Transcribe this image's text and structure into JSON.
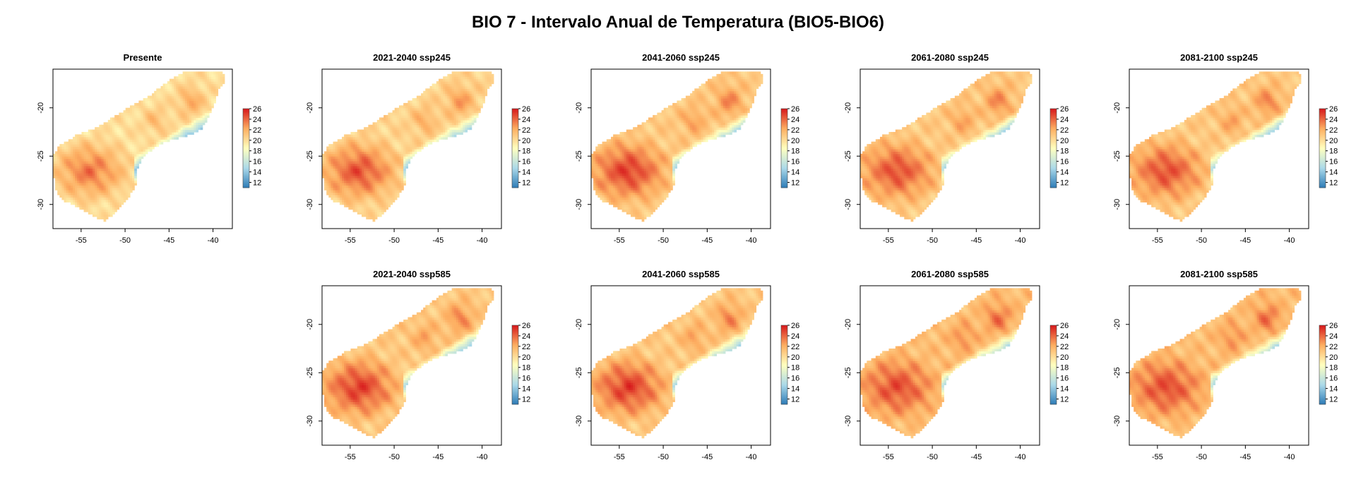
{
  "figure": {
    "title": "BIO 7 - Intervalo Anual de Temperatura (BIO5-BIO6)"
  },
  "colors": {
    "scale": [
      "#2c7bb6",
      "#abd9e9",
      "#ffffbf",
      "#fdae61",
      "#d7191c"
    ],
    "frame": "#000000",
    "background": "#ffffff"
  },
  "chart_data": [
    {
      "type": "heatmap",
      "title": "Presente",
      "xlim": [
        -58.2,
        -37.8
      ],
      "ylim": [
        -32.5,
        -16.0
      ],
      "x_ticks": [
        -55,
        -50,
        -45,
        -40
      ],
      "x_tick_labels": [
        "-55",
        "-50",
        "-45",
        "-40"
      ],
      "y_ticks": [
        -20,
        -25,
        -30
      ],
      "y_tick_labels": [
        "-20",
        "-25",
        "-30"
      ],
      "legend_ticks": [
        12,
        14,
        16,
        18,
        20,
        22,
        24,
        26
      ],
      "legend_range": [
        11,
        26
      ],
      "region_summary": {
        "southwest_core_max": 24,
        "interior_mean": 20,
        "coastal_min": 13
      }
    },
    {
      "type": "heatmap",
      "title": "2021-2040 ssp245",
      "xlim": [
        -58.2,
        -37.8
      ],
      "ylim": [
        -32.5,
        -16.0
      ],
      "x_ticks": [
        -55,
        -50,
        -45,
        -40
      ],
      "x_tick_labels": [
        "-55",
        "-50",
        "-45",
        "-40"
      ],
      "y_ticks": [
        -20,
        -25,
        -30
      ],
      "y_tick_labels": [
        "-20",
        "-25",
        "-30"
      ],
      "legend_ticks": [
        12,
        14,
        16,
        18,
        20,
        22,
        24,
        26
      ],
      "legend_range": [
        11,
        26
      ],
      "region_summary": {
        "southwest_core_max": 25,
        "interior_mean": 20.5,
        "coastal_min": 13.5
      }
    },
    {
      "type": "heatmap",
      "title": "2041-2060 ssp245",
      "xlim": [
        -58.2,
        -37.8
      ],
      "ylim": [
        -32.5,
        -16.0
      ],
      "x_ticks": [
        -55,
        -50,
        -45,
        -40
      ],
      "x_tick_labels": [
        "-55",
        "-50",
        "-45",
        "-40"
      ],
      "y_ticks": [
        -20,
        -25,
        -30
      ],
      "y_tick_labels": [
        "-20",
        "-25",
        "-30"
      ],
      "legend_ticks": [
        12,
        14,
        16,
        18,
        20,
        22,
        24,
        26
      ],
      "legend_range": [
        11,
        26
      ],
      "region_summary": {
        "southwest_core_max": 25.5,
        "interior_mean": 21,
        "coastal_min": 14
      }
    },
    {
      "type": "heatmap",
      "title": "2061-2080 ssp245",
      "xlim": [
        -58.2,
        -37.8
      ],
      "ylim": [
        -32.5,
        -16.0
      ],
      "x_ticks": [
        -55,
        -50,
        -45,
        -40
      ],
      "x_tick_labels": [
        "-55",
        "-50",
        "-45",
        "-40"
      ],
      "y_ticks": [
        -20,
        -25,
        -30
      ],
      "y_tick_labels": [
        "-20",
        "-25",
        "-30"
      ],
      "legend_ticks": [
        12,
        14,
        16,
        18,
        20,
        22,
        24,
        26
      ],
      "legend_range": [
        11,
        26
      ],
      "region_summary": {
        "southwest_core_max": 25,
        "interior_mean": 21,
        "coastal_min": 14
      }
    },
    {
      "type": "heatmap",
      "title": "2081-2100 ssp245",
      "xlim": [
        -58.2,
        -37.8
      ],
      "ylim": [
        -32.5,
        -16.0
      ],
      "x_ticks": [
        -55,
        -50,
        -45,
        -40
      ],
      "x_tick_labels": [
        "-55",
        "-50",
        "-45",
        "-40"
      ],
      "y_ticks": [
        -20,
        -25,
        -30
      ],
      "y_tick_labels": [
        "-20",
        "-25",
        "-30"
      ],
      "legend_ticks": [
        12,
        14,
        16,
        18,
        20,
        22,
        24,
        26
      ],
      "legend_range": [
        11,
        26
      ],
      "region_summary": {
        "southwest_core_max": 25,
        "interior_mean": 21,
        "coastal_min": 14
      }
    },
    {
      "type": "heatmap",
      "title": "2021-2040 ssp585",
      "xlim": [
        -58.2,
        -37.8
      ],
      "ylim": [
        -32.5,
        -16.0
      ],
      "x_ticks": [
        -55,
        -50,
        -45,
        -40
      ],
      "x_tick_labels": [
        "-55",
        "-50",
        "-45",
        "-40"
      ],
      "y_ticks": [
        -20,
        -25,
        -30
      ],
      "y_tick_labels": [
        "-20",
        "-25",
        "-30"
      ],
      "legend_ticks": [
        12,
        14,
        16,
        18,
        20,
        22,
        24,
        26
      ],
      "legend_range": [
        11,
        26
      ],
      "region_summary": {
        "southwest_core_max": 25.5,
        "interior_mean": 21,
        "coastal_min": 14
      }
    },
    {
      "type": "heatmap",
      "title": "2041-2060 ssp585",
      "xlim": [
        -58.2,
        -37.8
      ],
      "ylim": [
        -32.5,
        -16.0
      ],
      "x_ticks": [
        -55,
        -50,
        -45,
        -40
      ],
      "x_tick_labels": [
        "-55",
        "-50",
        "-45",
        "-40"
      ],
      "y_ticks": [
        -20,
        -25,
        -30
      ],
      "y_tick_labels": [
        "-20",
        "-25",
        "-30"
      ],
      "legend_ticks": [
        12,
        14,
        16,
        18,
        20,
        22,
        24,
        26
      ],
      "legend_range": [
        11,
        26
      ],
      "region_summary": {
        "southwest_core_max": 25.5,
        "interior_mean": 21,
        "coastal_min": 14
      }
    },
    {
      "type": "heatmap",
      "title": "2061-2080 ssp585",
      "xlim": [
        -58.2,
        -37.8
      ],
      "ylim": [
        -32.5,
        -16.0
      ],
      "x_ticks": [
        -55,
        -50,
        -45,
        -40
      ],
      "x_tick_labels": [
        "-55",
        "-50",
        "-45",
        "-40"
      ],
      "y_ticks": [
        -20,
        -25,
        -30
      ],
      "y_tick_labels": [
        "-20",
        "-25",
        "-30"
      ],
      "legend_ticks": [
        12,
        14,
        16,
        18,
        20,
        22,
        24,
        26
      ],
      "legend_range": [
        11,
        26
      ],
      "region_summary": {
        "southwest_core_max": 25,
        "interior_mean": 21.5,
        "coastal_min": 14.5
      }
    },
    {
      "type": "heatmap",
      "title": "2081-2100 ssp585",
      "xlim": [
        -58.2,
        -37.8
      ],
      "ylim": [
        -32.5,
        -16.0
      ],
      "x_ticks": [
        -55,
        -50,
        -45,
        -40
      ],
      "x_tick_labels": [
        "-55",
        "-50",
        "-45",
        "-40"
      ],
      "y_ticks": [
        -20,
        -25,
        -30
      ],
      "y_tick_labels": [
        "-20",
        "-25",
        "-30"
      ],
      "legend_ticks": [
        12,
        14,
        16,
        18,
        20,
        22,
        24,
        26
      ],
      "legend_range": [
        11,
        26
      ],
      "region_summary": {
        "southwest_core_max": 25,
        "interior_mean": 21.5,
        "coastal_min": 14.5
      }
    }
  ]
}
